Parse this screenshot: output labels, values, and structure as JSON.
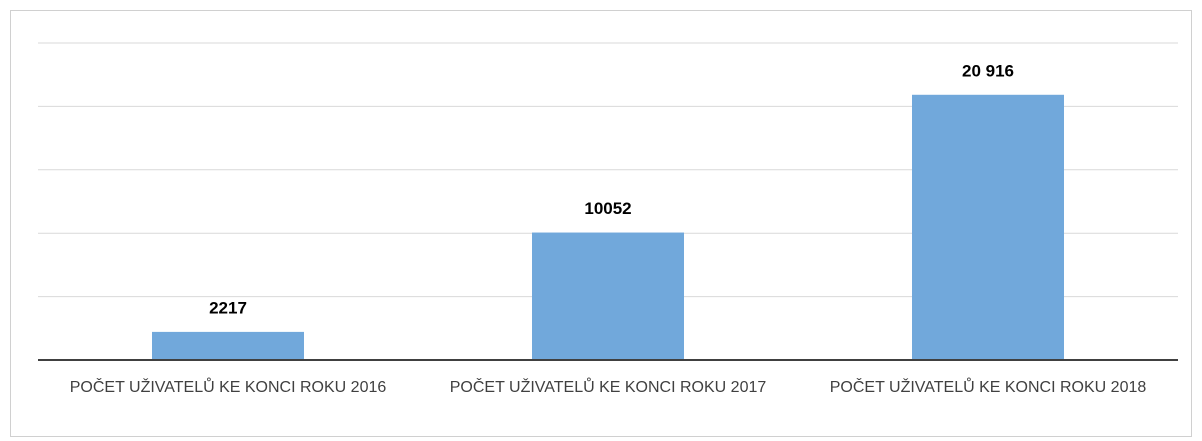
{
  "chart_data": {
    "type": "bar",
    "categories": [
      "POČET UŽIVATELŮ KE KONCI ROKU 2016",
      "POČET UŽIVATELŮ KE KONCI ROKU 2017",
      "POČET UŽIVATELŮ KE KONCI ROKU 2018"
    ],
    "values": [
      2217,
      10052,
      20916
    ],
    "value_labels": [
      "2217",
      "10052",
      "20 916"
    ],
    "color": "#71a8db",
    "ylim": [
      0,
      25000
    ],
    "yticks": [
      0,
      5000,
      10000,
      15000,
      20000,
      25000
    ],
    "grid": true
  }
}
